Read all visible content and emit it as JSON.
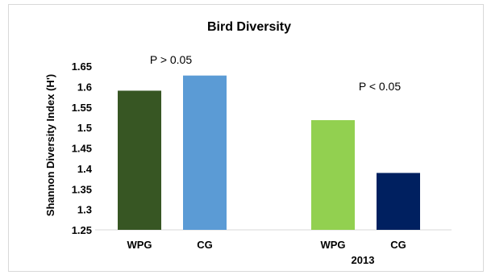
{
  "chart_data": {
    "type": "bar",
    "title": "Bird  Diversity",
    "xlabel": "",
    "ylabel": "Shannon Diversity Index (H')",
    "ylim": [
      1.25,
      1.65
    ],
    "yticks": [
      "1.25",
      "1.3",
      "1.35",
      "1.4",
      "1.45",
      "1.5",
      "1.55",
      "1.6",
      "1.65"
    ],
    "grid": false,
    "categories": [
      "WPG",
      "CG",
      "WPG",
      "CG"
    ],
    "values": [
      1.59,
      1.627,
      1.518,
      1.389
    ],
    "colors": [
      "#375623",
      "#5b9bd5",
      "#92d050",
      "#002060"
    ],
    "groups": [
      {
        "label": "",
        "annotation": "P > 0.05"
      },
      {
        "label": "2013",
        "annotation": "P < 0.05"
      }
    ]
  }
}
